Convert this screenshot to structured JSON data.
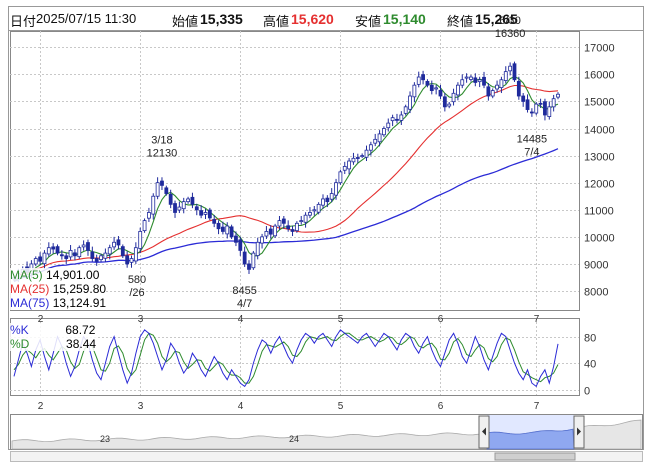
{
  "header": {
    "date_label": "日付",
    "datetime": "2025/07/15 11:30",
    "open_label": "始値",
    "open_value": "15,335",
    "high_label": "高値",
    "high_value": "15,620",
    "low_label": "安値",
    "low_value": "15,140",
    "close_label": "終値",
    "close_value": "15,265"
  },
  "colors": {
    "up": "#ffffff",
    "down": "#1f2a9c",
    "ma5": "#2e8b2e",
    "ma25": "#e53030",
    "ma75": "#2b2bd6",
    "k_line": "#2b2bd6",
    "d_line": "#2e8b2e",
    "high_text": "#e53030",
    "low_text": "#2e8b2e"
  },
  "ma_legend": [
    {
      "label": "MA(5)",
      "value": "14,901.00",
      "color": "#2e8b2e"
    },
    {
      "label": "MA(25)",
      "value": "15,259.80",
      "color": "#e53030"
    },
    {
      "label": "MA(75)",
      "value": "13,124.91",
      "color": "#2b2bd6"
    }
  ],
  "osc_legend": [
    {
      "label": "%K",
      "value": "68.72",
      "color": "#2b2bd6"
    },
    {
      "label": "%D",
      "value": "38.44",
      "color": "#2e8b2e"
    }
  ],
  "navigator": {
    "labels": [
      "23",
      "24"
    ]
  },
  "chart_data": [
    {
      "type": "line",
      "name": "price",
      "x_tick_labels": [
        "2",
        "3",
        "4",
        "5",
        "6",
        "7"
      ],
      "y_ticks": [
        8000,
        9000,
        10000,
        11000,
        12000,
        13000,
        14000,
        15000,
        16000,
        17000
      ],
      "ylim": [
        7300,
        17600
      ],
      "annotations": [
        {
          "date": "3/18",
          "value": "12130"
        },
        {
          "date": "4/7",
          "value": "8455"
        },
        {
          "date": "6/30",
          "value": "16360"
        },
        {
          "date": "7/4",
          "value": "14485"
        },
        {
          "date": "/26",
          "value": "580"
        }
      ],
      "close": [
        8500,
        8650,
        8800,
        8700,
        9000,
        9200,
        9100,
        9400,
        9600,
        9550,
        9400,
        9300,
        9200,
        9500,
        9300,
        9600,
        9700,
        9500,
        9200,
        9100,
        9300,
        9400,
        9600,
        9800,
        9700,
        9300,
        9000,
        9200,
        9600,
        10200,
        10600,
        10900,
        11500,
        12000,
        11900,
        11600,
        11200,
        10900,
        11100,
        11300,
        11400,
        11200,
        11000,
        10800,
        10900,
        10700,
        10500,
        10300,
        10200,
        10400,
        10000,
        9800,
        9500,
        9000,
        8800,
        9400,
        9800,
        10000,
        10200,
        10100,
        10400,
        10600,
        10500,
        10300,
        10200,
        10500,
        10600,
        10800,
        10900,
        11000,
        11200,
        11400,
        11300,
        11600,
        12000,
        12400,
        12600,
        12800,
        12900,
        12900,
        13000,
        13200,
        13400,
        13600,
        13800,
        14000,
        14200,
        14400,
        14300,
        14500,
        14800,
        15200,
        15600,
        15900,
        15800,
        15600,
        15400,
        15500,
        15200,
        14800,
        14900,
        15300,
        15600,
        15800,
        15900,
        15900,
        15700,
        15800,
        15600,
        15200,
        15400,
        15600,
        15800,
        16100,
        16300,
        15800,
        15200,
        15000,
        14700,
        14600,
        14900,
        14900,
        14500,
        14800,
        15100,
        15265
      ],
      "ma5": [
        8400,
        8450,
        8520,
        8600,
        8680,
        8860,
        8960,
        9080,
        9260,
        9370,
        9410,
        9450,
        9410,
        9390,
        9340,
        9380,
        9460,
        9520,
        9460,
        9420,
        9360,
        9300,
        9320,
        9440,
        9560,
        9560,
        9480,
        9400,
        9360,
        9460,
        9720,
        10100,
        10560,
        11040,
        11380,
        11580,
        11640,
        11520,
        11340,
        11220,
        11180,
        11180,
        11200,
        11140,
        11060,
        10920,
        10780,
        10640,
        10520,
        10420,
        10280,
        10140,
        9980,
        9740,
        9420,
        9300,
        9300,
        9400,
        9640,
        9900,
        10100,
        10260,
        10360,
        10380,
        10400,
        10420,
        10420,
        10480,
        10600,
        10760,
        10900,
        11060,
        11160,
        11300,
        11500,
        11740,
        12020,
        12280,
        12540,
        12720,
        12840,
        12960,
        13080,
        13220,
        13400,
        13600,
        13800,
        14000,
        14140,
        14280,
        14440,
        14640,
        14880,
        15200,
        15460,
        15620,
        15660,
        15640,
        15500,
        15300,
        15160,
        15140,
        15160,
        15280,
        15500,
        15700,
        15780,
        15820,
        15780,
        15640,
        15540,
        15520,
        15520,
        15620,
        15840,
        15920,
        15840,
        15680,
        15400,
        15060,
        14880,
        14820,
        14720,
        14740,
        14840,
        14901
      ]
    },
    {
      "type": "line",
      "name": "stochastic",
      "y_ticks": [
        0,
        20,
        40,
        60,
        80
      ],
      "ylim": [
        -8,
        108
      ],
      "k": [
        20,
        45,
        70,
        55,
        35,
        60,
        75,
        50,
        30,
        55,
        80,
        65,
        40,
        20,
        35,
        60,
        80,
        70,
        45,
        25,
        15,
        40,
        65,
        80,
        55,
        30,
        10,
        25,
        55,
        80,
        90,
        85,
        70,
        50,
        30,
        45,
        70,
        60,
        40,
        25,
        35,
        55,
        45,
        30,
        20,
        35,
        50,
        40,
        25,
        15,
        30,
        20,
        10,
        5,
        15,
        40,
        60,
        75,
        70,
        55,
        70,
        80,
        65,
        50,
        40,
        60,
        75,
        85,
        80,
        70,
        80,
        85,
        75,
        65,
        80,
        90,
        85,
        80,
        75,
        70,
        80,
        85,
        75,
        65,
        75,
        85,
        80,
        70,
        60,
        75,
        85,
        80,
        65,
        55,
        70,
        80,
        60,
        45,
        35,
        55,
        75,
        85,
        70,
        50,
        40,
        60,
        80,
        65,
        45,
        30,
        50,
        70,
        85,
        80,
        60,
        40,
        25,
        15,
        30,
        10,
        5,
        20,
        30,
        10,
        35,
        69
      ],
      "d": [
        30,
        38,
        52,
        60,
        55,
        48,
        58,
        62,
        52,
        45,
        55,
        65,
        60,
        42,
        32,
        38,
        58,
        70,
        65,
        48,
        30,
        28,
        40,
        62,
        66,
        55,
        32,
        22,
        30,
        52,
        75,
        85,
        82,
        70,
        50,
        42,
        48,
        58,
        56,
        42,
        32,
        38,
        45,
        44,
        32,
        28,
        35,
        42,
        38,
        28,
        22,
        22,
        18,
        10,
        10,
        20,
        38,
        58,
        68,
        66,
        64,
        68,
        72,
        65,
        52,
        50,
        58,
        72,
        80,
        78,
        76,
        78,
        80,
        75,
        74,
        80,
        85,
        85,
        80,
        75,
        75,
        78,
        80,
        76,
        72,
        75,
        80,
        78,
        70,
        68,
        73,
        80,
        77,
        66,
        63,
        68,
        70,
        62,
        46,
        45,
        55,
        72,
        77,
        68,
        53,
        50,
        60,
        68,
        63,
        47,
        42,
        50,
        68,
        78,
        75,
        60,
        42,
        27,
        23,
        18,
        15,
        12,
        18,
        20,
        25,
        38
      ]
    }
  ]
}
